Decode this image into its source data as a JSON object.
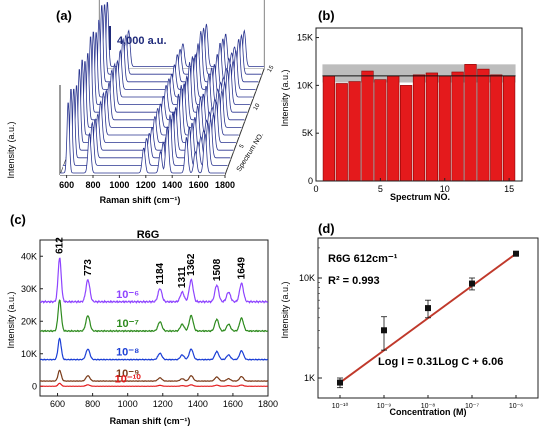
{
  "chart_data": [
    {
      "panel_label": "(a)",
      "type": "line",
      "description_scale": "4,000 a.u.",
      "xlabel": "Raman shift (cm⁻¹)",
      "ylabel": "Intensity (a.u.)",
      "zlabel": "Spectrum NO.",
      "xticks": [
        "600",
        "800",
        "1000",
        "1200",
        "1400",
        "1600",
        "1800"
      ],
      "zticks": [
        "5",
        "10",
        "15"
      ],
      "xlim": [
        550,
        1800
      ],
      "series_count": 15,
      "peaks": [
        {
          "pos": 612,
          "h": 1.0
        },
        {
          "pos": 773,
          "h": 0.55
        },
        {
          "pos": 1184,
          "h": 0.35
        },
        {
          "pos": 1311,
          "h": 0.3
        },
        {
          "pos": 1362,
          "h": 0.65
        },
        {
          "pos": 1508,
          "h": 0.5
        },
        {
          "pos": 1575,
          "h": 0.3
        },
        {
          "pos": 1649,
          "h": 0.55
        }
      ]
    },
    {
      "panel_label": "(b)",
      "type": "bar",
      "xlabel": "Spectrum NO.",
      "ylabel": "Intensity (a.u.)",
      "x": [
        1,
        2,
        3,
        4,
        5,
        6,
        7,
        8,
        9,
        10,
        11,
        12,
        13,
        14,
        15
      ],
      "values": [
        11000,
        10200,
        10400,
        11500,
        10600,
        11000,
        10000,
        11100,
        11300,
        11000,
        11400,
        12200,
        11700,
        11100,
        11000
      ],
      "mean_line": 11000,
      "band": [
        10300,
        12200
      ],
      "xlim": [
        0,
        16
      ],
      "ylim": [
        0,
        16000
      ],
      "xticks": [
        "0",
        "5",
        "10",
        "15"
      ],
      "yticks": [
        "0",
        "5K",
        "10K",
        "15K"
      ],
      "bar_color": "#e41a1c",
      "band_color": "#bdbdbd"
    },
    {
      "panel_label": "(c)",
      "type": "line",
      "title": "R6G",
      "xlabel": "Raman shift (cm⁻¹)",
      "ylabel": "Intensity (a.u.)",
      "xlim": [
        500,
        1800
      ],
      "ylim": [
        -3000,
        45000
      ],
      "xticks": [
        "600",
        "800",
        "1000",
        "1200",
        "1400",
        "1600",
        "1800"
      ],
      "yticks": [
        "0",
        "10K",
        "20K",
        "30K",
        "40K"
      ],
      "peak_labels": [
        "612",
        "773",
        "1184",
        "1311",
        "1362",
        "1508",
        "1649"
      ],
      "peaks": [
        {
          "pos": 612,
          "h": 1.0
        },
        {
          "pos": 773,
          "h": 0.5
        },
        {
          "pos": 1184,
          "h": 0.3
        },
        {
          "pos": 1311,
          "h": 0.22
        },
        {
          "pos": 1362,
          "h": 0.5
        },
        {
          "pos": 1508,
          "h": 0.38
        },
        {
          "pos": 1575,
          "h": 0.22
        },
        {
          "pos": 1649,
          "h": 0.42
        }
      ],
      "series": [
        {
          "name": "10⁻⁶",
          "baseline": 26000,
          "scale": 13500,
          "color": "#8e44ff"
        },
        {
          "name": "10⁻⁷",
          "baseline": 17000,
          "scale": 9500,
          "color": "#2e8b1e"
        },
        {
          "name": "10⁻⁸",
          "baseline": 8200,
          "scale": 6500,
          "color": "#1c3fd6"
        },
        {
          "name": "10⁻⁹",
          "baseline": 1600,
          "scale": 3300,
          "color": "#7a3b1a"
        },
        {
          "name": "10⁻¹⁰",
          "baseline": 0,
          "scale": 900,
          "color": "#e41a1c"
        }
      ]
    },
    {
      "panel_label": "(d)",
      "type": "scatter",
      "xlabel": "Concentration (M)",
      "ylabel": "Intensity (a.u.)",
      "annotation_1": "R6G  612cm⁻¹",
      "annotation_2": "R² = 0.993",
      "equation": "Log I = 0.31Log C + 6.06",
      "x_log": [
        -10,
        -9,
        -8,
        -7,
        -6
      ],
      "y": [
        900,
        3000,
        5000,
        8800,
        17500
      ],
      "err": [
        100,
        1100,
        1000,
        1200,
        800
      ],
      "fit": {
        "slope": 0.31,
        "intercept": 6.06
      },
      "xticks": [
        "10⁻¹⁰",
        "10⁻⁹",
        "10⁻⁸",
        "10⁻⁷",
        "10⁻⁶"
      ],
      "yticks": [
        "1K",
        "10K"
      ],
      "xlim_log": [
        -10.5,
        -5.5
      ],
      "ylim_log": [
        2.8,
        4.4
      ],
      "fit_color": "#c0392b"
    }
  ]
}
